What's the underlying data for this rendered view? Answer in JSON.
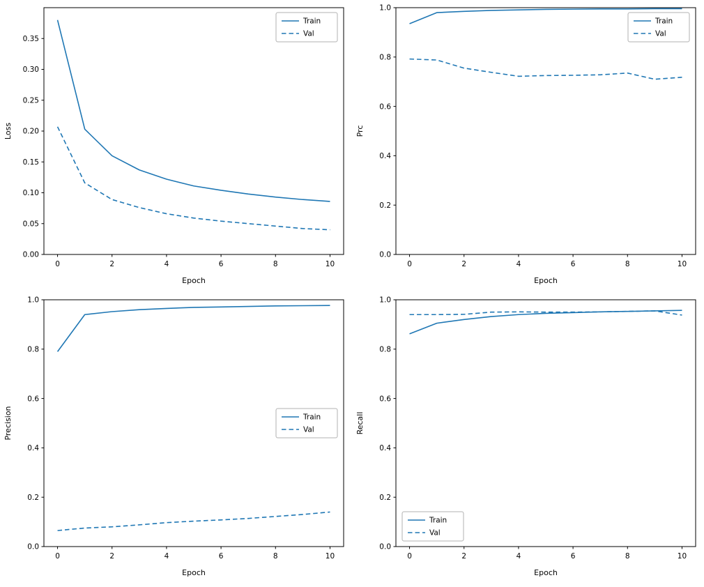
{
  "figure": {
    "background": "#ffffff",
    "line_color": "#1f77b4",
    "axis_color": "#000000",
    "legend_border_color": "#b0b0b0"
  },
  "chart_data": [
    {
      "type": "line",
      "title": "",
      "xlabel": "Epoch",
      "ylabel": "Loss",
      "x": [
        0,
        1,
        2,
        3,
        4,
        5,
        6,
        7,
        8,
        9,
        10
      ],
      "series": [
        {
          "name": "Train",
          "style": "solid",
          "values": [
            0.38,
            0.203,
            0.16,
            0.137,
            0.122,
            0.111,
            0.104,
            0.098,
            0.093,
            0.089,
            0.086
          ]
        },
        {
          "name": "Val",
          "style": "dashed",
          "values": [
            0.207,
            0.116,
            0.089,
            0.076,
            0.066,
            0.059,
            0.054,
            0.05,
            0.046,
            0.042,
            0.04
          ]
        }
      ],
      "xlim": [
        -0.5,
        10.5
      ],
      "ylim": [
        0,
        0.4
      ],
      "xticks": [
        0,
        2,
        4,
        6,
        8,
        10
      ],
      "xtick_labels": [
        "0",
        "2",
        "4",
        "6",
        "8",
        "10"
      ],
      "yticks": [
        0,
        0.05,
        0.1,
        0.15,
        0.2,
        0.25,
        0.3,
        0.35
      ],
      "ytick_labels": [
        "0.00",
        "0.05",
        "0.10",
        "0.15",
        "0.20",
        "0.25",
        "0.30",
        "0.35"
      ],
      "legend_loc": "upper-right",
      "legend_labels": [
        "Train",
        "Val"
      ],
      "grid": false
    },
    {
      "type": "line",
      "title": "",
      "xlabel": "Epoch",
      "ylabel": "Prc",
      "x": [
        0,
        1,
        2,
        3,
        4,
        5,
        6,
        7,
        8,
        9,
        10
      ],
      "series": [
        {
          "name": "Train",
          "style": "solid",
          "values": [
            0.935,
            0.98,
            0.985,
            0.989,
            0.991,
            0.993,
            0.994,
            0.995,
            0.995,
            0.996,
            0.996
          ]
        },
        {
          "name": "Val",
          "style": "dashed",
          "values": [
            0.792,
            0.788,
            0.755,
            0.738,
            0.722,
            0.725,
            0.726,
            0.728,
            0.735,
            0.71,
            0.718
          ]
        }
      ],
      "xlim": [
        -0.5,
        10.5
      ],
      "ylim": [
        0,
        1.0
      ],
      "xticks": [
        0,
        2,
        4,
        6,
        8,
        10
      ],
      "xtick_labels": [
        "0",
        "2",
        "4",
        "6",
        "8",
        "10"
      ],
      "yticks": [
        0,
        0.2,
        0.4,
        0.6,
        0.8,
        1.0
      ],
      "ytick_labels": [
        "0.0",
        "0.2",
        "0.4",
        "0.6",
        "0.8",
        "1.0"
      ],
      "legend_loc": "upper-right",
      "legend_labels": [
        "Train",
        "Val"
      ],
      "grid": false
    },
    {
      "type": "line",
      "title": "",
      "xlabel": "Epoch",
      "ylabel": "Precision",
      "x": [
        0,
        1,
        2,
        3,
        4,
        5,
        6,
        7,
        8,
        9,
        10
      ],
      "series": [
        {
          "name": "Train",
          "style": "solid",
          "values": [
            0.79,
            0.94,
            0.952,
            0.96,
            0.965,
            0.969,
            0.971,
            0.973,
            0.975,
            0.976,
            0.977
          ]
        },
        {
          "name": "Val",
          "style": "dashed",
          "values": [
            0.065,
            0.075,
            0.08,
            0.088,
            0.097,
            0.103,
            0.108,
            0.114,
            0.122,
            0.13,
            0.14
          ]
        }
      ],
      "xlim": [
        -0.5,
        10.5
      ],
      "ylim": [
        0,
        1.0
      ],
      "xticks": [
        0,
        2,
        4,
        6,
        8,
        10
      ],
      "xtick_labels": [
        "0",
        "2",
        "4",
        "6",
        "8",
        "10"
      ],
      "yticks": [
        0,
        0.2,
        0.4,
        0.6,
        0.8,
        1.0
      ],
      "ytick_labels": [
        "0.0",
        "0.2",
        "0.4",
        "0.6",
        "0.8",
        "1.0"
      ],
      "legend_loc": "center-right",
      "legend_labels": [
        "Train",
        "Val"
      ],
      "grid": false
    },
    {
      "type": "line",
      "title": "",
      "xlabel": "Epoch",
      "ylabel": "Recall",
      "x": [
        0,
        1,
        2,
        3,
        4,
        5,
        6,
        7,
        8,
        9,
        10
      ],
      "series": [
        {
          "name": "Train",
          "style": "solid",
          "values": [
            0.862,
            0.905,
            0.92,
            0.932,
            0.94,
            0.945,
            0.948,
            0.951,
            0.953,
            0.955,
            0.957
          ]
        },
        {
          "name": "Val",
          "style": "dashed",
          "values": [
            0.94,
            0.94,
            0.941,
            0.95,
            0.951,
            0.95,
            0.95,
            0.951,
            0.953,
            0.955,
            0.938
          ]
        }
      ],
      "xlim": [
        -0.5,
        10.5
      ],
      "ylim": [
        0,
        1.0
      ],
      "xticks": [
        0,
        2,
        4,
        6,
        8,
        10
      ],
      "xtick_labels": [
        "0",
        "2",
        "4",
        "6",
        "8",
        "10"
      ],
      "yticks": [
        0,
        0.2,
        0.4,
        0.6,
        0.8,
        1.0
      ],
      "ytick_labels": [
        "0.0",
        "0.2",
        "0.4",
        "0.6",
        "0.8",
        "1.0"
      ],
      "legend_loc": "lower-left",
      "legend_labels": [
        "Train",
        "Val"
      ],
      "grid": false
    }
  ]
}
